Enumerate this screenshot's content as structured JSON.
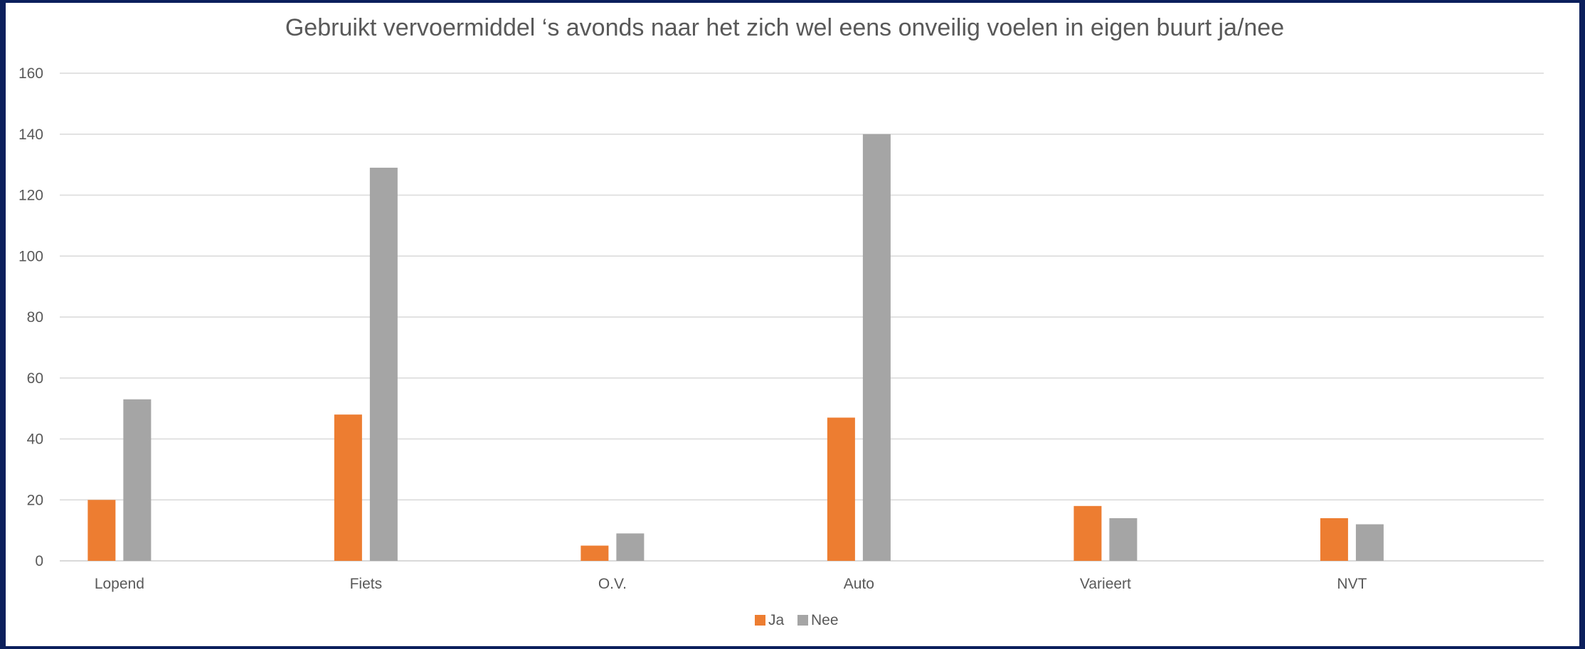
{
  "chart_data": {
    "type": "bar",
    "title": "Gebruikt vervoermiddel ‘s avonds naar het zich wel eens onveilig voelen in eigen buurt ja/nee",
    "categories": [
      "Lopend",
      "Fiets",
      "O.V.",
      "Auto",
      "Varieert",
      "NVT"
    ],
    "series": [
      {
        "name": "Ja",
        "color": "#ed7d31",
        "values": [
          20,
          48,
          5,
          47,
          18,
          14
        ]
      },
      {
        "name": "Nee",
        "color": "#a5a5a5",
        "values": [
          53,
          129,
          9,
          140,
          14,
          12
        ]
      }
    ],
    "ylim": [
      0,
      160
    ],
    "yticks": [
      0,
      20,
      40,
      60,
      80,
      100,
      120,
      140,
      160
    ],
    "grid": true,
    "legend_position": "bottom"
  }
}
